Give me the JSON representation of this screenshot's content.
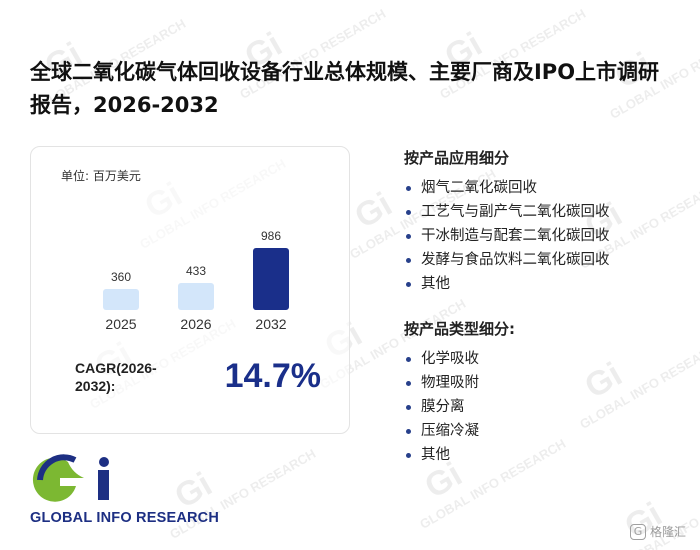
{
  "report": {
    "title": "全球二氧化碳气体回收设备行业总体规模、主要厂商及IPO上市调研报告，2026-2032"
  },
  "chart_data": {
    "type": "bar",
    "unit_label": "单位: 百万美元",
    "categories": [
      "2025",
      "2026",
      "2032"
    ],
    "values": [
      360,
      433,
      986
    ],
    "data_labels": [
      "360",
      "433",
      "986"
    ],
    "highlight_index": 2,
    "colors": {
      "base": "#d3e6fa",
      "highlight": "#1a2f8a"
    },
    "title": "",
    "xlabel": "",
    "ylabel": "",
    "ylim": [
      0,
      1000
    ],
    "grid": false,
    "legend": "none"
  },
  "cagr": {
    "label": "CAGR(2026-2032):",
    "value": "14.7%"
  },
  "segments": {
    "application": {
      "title": "按产品应用细分",
      "items": [
        "烟气二氧化碳回收",
        "工艺气与副产气二氧化碳回收",
        "干冰制造与配套二氧化碳回收",
        "发酵与食品饮料二氧化碳回收",
        "其他"
      ]
    },
    "type": {
      "title": "按产品类型细分:",
      "items": [
        "化学吸收",
        "物理吸附",
        "膜分离",
        "压缩冷凝",
        "其他"
      ]
    }
  },
  "logo": {
    "text": "GLOBAL INFO RESEARCH",
    "mark": "Gi",
    "colors": {
      "green": "#7cb832",
      "navy": "#1d2f83"
    }
  },
  "watermark": {
    "mark": "Gi",
    "text": "GLOBAL INFO RESEARCH"
  },
  "corner_badge": {
    "icon": "square-g-icon",
    "text": "格隆汇"
  }
}
